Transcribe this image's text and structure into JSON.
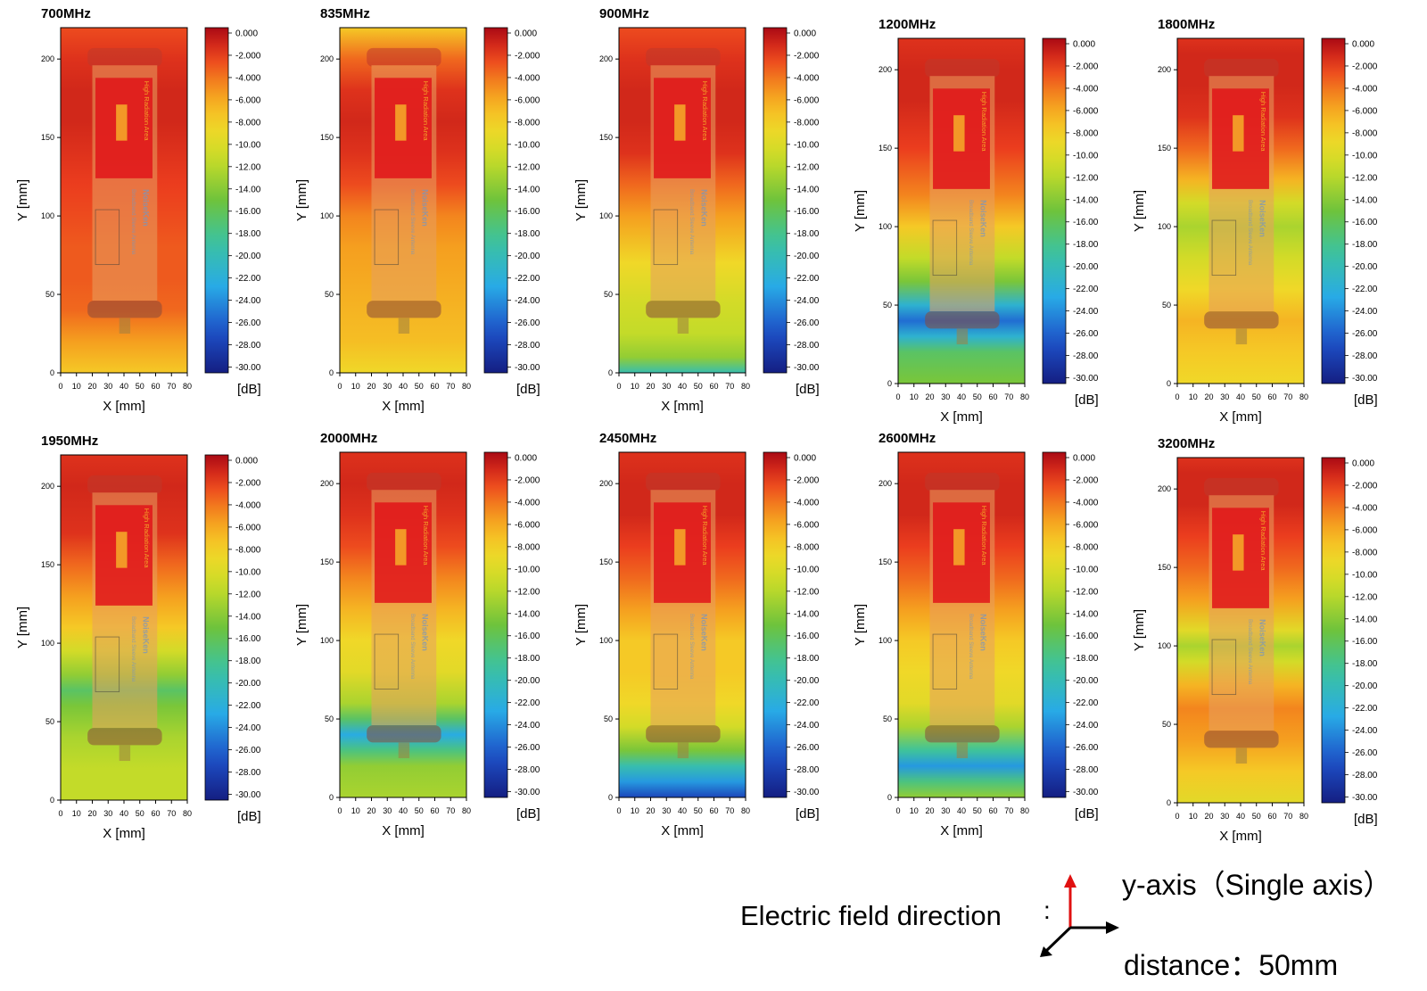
{
  "chart_data": [
    {
      "type": "heatmap",
      "title": "700MHz",
      "xlabel": "X [mm]",
      "ylabel": "Y [mm]",
      "unit": "[dB]",
      "x_range": [
        0,
        80
      ],
      "y_range": [
        0,
        220
      ],
      "xticks": [
        "0",
        "10",
        "20",
        "30",
        "40",
        "50",
        "60",
        "70",
        "80"
      ],
      "yticks": [
        "0",
        "50",
        "100",
        "150",
        "200"
      ],
      "colorbar_range": [
        -31,
        0
      ],
      "colorbar_ticks": [
        "0.000",
        "-2.000",
        "-4.000",
        "-6.000",
        "-8.000",
        "-10.00",
        "-12.00",
        "-14.00",
        "-16.00",
        "-18.00",
        "-20.00",
        "-22.00",
        "-24.00",
        "-26.00",
        "-28.00",
        "-30.00"
      ],
      "profile": {
        "y": [
          0,
          20,
          40,
          60,
          80,
          100,
          120,
          140,
          160,
          180,
          200,
          220
        ],
        "value_db": [
          -8,
          -6,
          -4,
          -3.5,
          -3.5,
          -3,
          -2.5,
          -2,
          -1.5,
          -1.5,
          -2,
          -3
        ]
      }
    },
    {
      "type": "heatmap",
      "title": "835MHz",
      "xlabel": "X [mm]",
      "ylabel": "Y [mm]",
      "unit": "[dB]",
      "x_range": [
        0,
        80
      ],
      "y_range": [
        0,
        220
      ],
      "xticks": [
        "0",
        "10",
        "20",
        "30",
        "40",
        "50",
        "60",
        "70",
        "80"
      ],
      "yticks": [
        "0",
        "50",
        "100",
        "150",
        "200"
      ],
      "colorbar_range": [
        -31,
        0
      ],
      "colorbar_ticks": [
        "0.000",
        "-2.000",
        "-4.000",
        "-6.000",
        "-8.000",
        "-10.00",
        "-12.00",
        "-14.00",
        "-16.00",
        "-18.00",
        "-20.00",
        "-22.00",
        "-24.00",
        "-26.00",
        "-28.00",
        "-30.00"
      ],
      "profile": {
        "y": [
          0,
          20,
          40,
          60,
          80,
          100,
          120,
          140,
          160,
          180,
          200,
          220
        ],
        "value_db": [
          -9,
          -7.5,
          -7,
          -6.5,
          -6,
          -5,
          -3,
          -2,
          -1.5,
          -2,
          -4,
          -8
        ]
      }
    },
    {
      "type": "heatmap",
      "title": "900MHz",
      "xlabel": "X [mm]",
      "ylabel": "Y [mm]",
      "unit": "[dB]",
      "x_range": [
        0,
        80
      ],
      "y_range": [
        0,
        220
      ],
      "xticks": [
        "0",
        "10",
        "20",
        "30",
        "40",
        "50",
        "60",
        "70",
        "80"
      ],
      "yticks": [
        "0",
        "50",
        "100",
        "150",
        "200"
      ],
      "colorbar_range": [
        -31,
        0
      ],
      "colorbar_ticks": [
        "0.000",
        "-2.000",
        "-4.000",
        "-6.000",
        "-8.000",
        "-10.00",
        "-12.00",
        "-14.00",
        "-16.00",
        "-18.00",
        "-20.00",
        "-22.00",
        "-24.00",
        "-26.00",
        "-28.00",
        "-30.00"
      ],
      "profile": {
        "y": [
          0,
          10,
          25,
          45,
          70,
          100,
          120,
          140,
          160,
          180,
          200,
          220
        ],
        "value_db": [
          -20,
          -14,
          -12,
          -11,
          -9,
          -6,
          -4,
          -2,
          -1.5,
          -1.5,
          -2,
          -3
        ]
      }
    },
    {
      "type": "heatmap",
      "title": "1200MHz",
      "xlabel": "X [mm]",
      "ylabel": "Y [mm]",
      "unit": "[dB]",
      "x_range": [
        0,
        80
      ],
      "y_range": [
        0,
        220
      ],
      "xticks": [
        "0",
        "10",
        "20",
        "30",
        "40",
        "50",
        "60",
        "70",
        "80"
      ],
      "yticks": [
        "0",
        "50",
        "100",
        "150",
        "200"
      ],
      "colorbar_range": [
        -31,
        0
      ],
      "colorbar_ticks": [
        "0.000",
        "-2.000",
        "-4.000",
        "-6.000",
        "-8.000",
        "-10.00",
        "-12.00",
        "-14.00",
        "-16.00",
        "-18.00",
        "-20.00",
        "-22.00",
        "-24.00",
        "-26.00",
        "-28.00",
        "-30.00"
      ],
      "profile": {
        "y": [
          0,
          20,
          30,
          40,
          50,
          65,
          80,
          100,
          120,
          150,
          180,
          200,
          220
        ],
        "value_db": [
          -15,
          -17,
          -22,
          -26,
          -22,
          -15,
          -12,
          -8,
          -5,
          -2.5,
          -1.5,
          -1.5,
          -2
        ]
      }
    },
    {
      "type": "heatmap",
      "title": "1800MHz",
      "xlabel": "X [mm]",
      "ylabel": "Y [mm]",
      "unit": "[dB]",
      "x_range": [
        0,
        80
      ],
      "y_range": [
        0,
        220
      ],
      "xticks": [
        "0",
        "10",
        "20",
        "30",
        "40",
        "50",
        "60",
        "70",
        "80"
      ],
      "yticks": [
        "0",
        "50",
        "100",
        "150",
        "200"
      ],
      "colorbar_range": [
        -31,
        0
      ],
      "colorbar_ticks": [
        "0.000",
        "-2.000",
        "-4.000",
        "-6.000",
        "-8.000",
        "-10.00",
        "-12.00",
        "-14.00",
        "-16.00",
        "-18.00",
        "-20.00",
        "-22.00",
        "-24.00",
        "-26.00",
        "-28.00",
        "-30.00"
      ],
      "profile": {
        "y": [
          0,
          20,
          40,
          60,
          80,
          100,
          115,
          130,
          150,
          170,
          190,
          210,
          220
        ],
        "value_db": [
          -9,
          -8,
          -7,
          -9,
          -11,
          -13,
          -11,
          -7,
          -4,
          -2,
          -1.5,
          -1.5,
          -2
        ]
      }
    },
    {
      "type": "heatmap",
      "title": "1950MHz",
      "xlabel": "X [mm]",
      "ylabel": "Y [mm]",
      "unit": "[dB]",
      "x_range": [
        0,
        80
      ],
      "y_range": [
        0,
        220
      ],
      "xticks": [
        "0",
        "10",
        "20",
        "30",
        "40",
        "50",
        "60",
        "70",
        "80"
      ],
      "yticks": [
        "0",
        "50",
        "100",
        "150",
        "200"
      ],
      "colorbar_range": [
        -31,
        0
      ],
      "colorbar_ticks": [
        "0.000",
        "-2.000",
        "-4.000",
        "-6.000",
        "-8.000",
        "-10.00",
        "-12.00",
        "-14.00",
        "-16.00",
        "-18.00",
        "-20.00",
        "-22.00",
        "-24.00",
        "-26.00",
        "-28.00",
        "-30.00"
      ],
      "profile": {
        "y": [
          0,
          20,
          40,
          50,
          60,
          70,
          80,
          95,
          110,
          130,
          150,
          170,
          200,
          220
        ],
        "value_db": [
          -12,
          -12,
          -13,
          -14,
          -15,
          -17,
          -14,
          -11,
          -8,
          -6,
          -4,
          -2,
          -1.5,
          -2
        ]
      }
    },
    {
      "type": "heatmap",
      "title": "2000MHz",
      "xlabel": "X [mm]",
      "ylabel": "Y [mm]",
      "unit": "[dB]",
      "x_range": [
        0,
        80
      ],
      "y_range": [
        0,
        220
      ],
      "xticks": [
        "0",
        "10",
        "20",
        "30",
        "40",
        "50",
        "60",
        "70",
        "80"
      ],
      "yticks": [
        "0",
        "50",
        "100",
        "150",
        "200"
      ],
      "colorbar_range": [
        -31,
        0
      ],
      "colorbar_ticks": [
        "0.000",
        "-2.000",
        "-4.000",
        "-6.000",
        "-8.000",
        "-10.00",
        "-12.00",
        "-14.00",
        "-16.00",
        "-18.00",
        "-20.00",
        "-22.00",
        "-24.00",
        "-26.00",
        "-28.00",
        "-30.00"
      ],
      "profile": {
        "y": [
          0,
          20,
          30,
          40,
          50,
          60,
          80,
          100,
          120,
          140,
          160,
          180,
          200,
          220
        ],
        "value_db": [
          -13,
          -14,
          -18,
          -23,
          -17,
          -13,
          -10,
          -9,
          -7,
          -5,
          -3,
          -2,
          -1.5,
          -2
        ]
      }
    },
    {
      "type": "heatmap",
      "title": "2450MHz",
      "xlabel": "X [mm]",
      "ylabel": "Y [mm]",
      "unit": "[dB]",
      "x_range": [
        0,
        80
      ],
      "y_range": [
        0,
        220
      ],
      "xticks": [
        "0",
        "10",
        "20",
        "30",
        "40",
        "50",
        "60",
        "70",
        "80"
      ],
      "yticks": [
        "0",
        "50",
        "100",
        "150",
        "200"
      ],
      "colorbar_range": [
        -31,
        0
      ],
      "colorbar_ticks": [
        "0.000",
        "-2.000",
        "-4.000",
        "-6.000",
        "-8.000",
        "-10.00",
        "-12.00",
        "-14.00",
        "-16.00",
        "-18.00",
        "-20.00",
        "-22.00",
        "-24.00",
        "-26.00",
        "-28.00",
        "-30.00"
      ],
      "profile": {
        "y": [
          0,
          10,
          20,
          30,
          45,
          60,
          80,
          100,
          120,
          140,
          160,
          180,
          200,
          220
        ],
        "value_db": [
          -28,
          -24,
          -20,
          -15,
          -11,
          -9,
          -8,
          -8,
          -6,
          -4,
          -2.5,
          -1.5,
          -1.5,
          -2
        ]
      }
    },
    {
      "type": "heatmap",
      "title": "2600MHz",
      "xlabel": "X [mm]",
      "ylabel": "Y [mm]",
      "unit": "[dB]",
      "x_range": [
        0,
        80
      ],
      "y_range": [
        0,
        220
      ],
      "xticks": [
        "0",
        "10",
        "20",
        "30",
        "40",
        "50",
        "60",
        "70",
        "80"
      ],
      "yticks": [
        "0",
        "50",
        "100",
        "150",
        "200"
      ],
      "colorbar_range": [
        -31,
        0
      ],
      "colorbar_ticks": [
        "0.000",
        "-2.000",
        "-4.000",
        "-6.000",
        "-8.000",
        "-10.00",
        "-12.00",
        "-14.00",
        "-16.00",
        "-18.00",
        "-20.00",
        "-22.00",
        "-24.00",
        "-26.00",
        "-28.00",
        "-30.00"
      ],
      "profile": {
        "y": [
          0,
          10,
          20,
          30,
          45,
          60,
          80,
          100,
          120,
          140,
          160,
          180,
          200,
          220
        ],
        "value_db": [
          -14,
          -18,
          -24,
          -19,
          -13,
          -10,
          -9,
          -8,
          -6,
          -4,
          -2.5,
          -1.5,
          -1.5,
          -2
        ]
      }
    },
    {
      "type": "heatmap",
      "title": "3200MHz",
      "xlabel": "X [mm]",
      "ylabel": "Y [mm]",
      "unit": "[dB]",
      "x_range": [
        0,
        80
      ],
      "y_range": [
        0,
        220
      ],
      "xticks": [
        "0",
        "10",
        "20",
        "30",
        "40",
        "50",
        "60",
        "70",
        "80"
      ],
      "yticks": [
        "0",
        "50",
        "100",
        "150",
        "200"
      ],
      "colorbar_range": [
        -31,
        0
      ],
      "colorbar_ticks": [
        "0.000",
        "-2.000",
        "-4.000",
        "-6.000",
        "-8.000",
        "-10.00",
        "-12.00",
        "-14.00",
        "-16.00",
        "-18.00",
        "-20.00",
        "-22.00",
        "-24.00",
        "-26.00",
        "-28.00",
        "-30.00"
      ],
      "profile": {
        "y": [
          0,
          20,
          40,
          60,
          75,
          90,
          100,
          110,
          130,
          150,
          170,
          190,
          210,
          220
        ],
        "value_db": [
          -10,
          -8,
          -6,
          -5,
          -7,
          -11,
          -13,
          -10,
          -6,
          -4,
          -2.5,
          -1.5,
          -1.5,
          -2
        ]
      }
    }
  ],
  "device_overlay": {
    "warning_text": "High Radiation Area",
    "brand_text": "NoiseKen",
    "subtitle_text": "Broadband Sleeve Antenna"
  },
  "legend": {
    "field_direction_label": "Electric field direction",
    "colon": ":",
    "axis_label": "y-axis（Single axis）",
    "distance_label": "distance：50mm"
  },
  "colors": {
    "arrow_red": "#e01010",
    "axis_black": "#000000"
  }
}
